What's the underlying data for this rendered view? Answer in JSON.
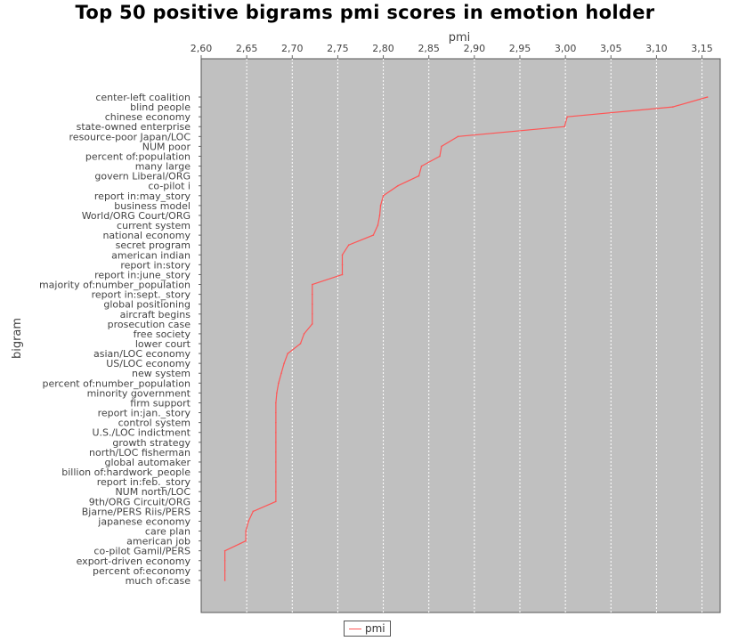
{
  "chart_data": {
    "type": "line",
    "orientation": "horizontal",
    "title": "Top 50 positive bigrams pmi scores in emotion holder",
    "xlabel": "pmi",
    "ylabel": "bigram",
    "xlim": [
      2.6,
      3.17
    ],
    "x_axis_position": "top",
    "x_ticks": [
      "2,60",
      "2,65",
      "2,70",
      "2,75",
      "2,80",
      "2,85",
      "2,90",
      "2,95",
      "3,00",
      "3,05",
      "3,10",
      "3,15"
    ],
    "grid": true,
    "legend_position": "bottom",
    "series": [
      {
        "name": "pmi",
        "color": "#ff5555",
        "categories": [
          "center-left coalition",
          "blind people",
          "chinese economy",
          "state-owned enterprise",
          "resource-poor Japan/LOC",
          "NUM poor",
          "percent of:population",
          "many large",
          "govern Liberal/ORG",
          "co-pilot i",
          "report in:may_story",
          "business model",
          "World/ORG Court/ORG",
          "current system",
          "national economy",
          "secret program",
          "american indian",
          "report in:story",
          "report in:june_story",
          "majority of:number_population",
          "report in:sept._story",
          "global positioning",
          "aircraft begins",
          "prosecution case",
          "free society",
          "lower court",
          "asian/LOC economy",
          "US/LOC economy",
          "new system",
          "percent of:number_population",
          "minority government",
          "firm support",
          "report in:jan._story",
          "control system",
          "U.S./LOC indictment",
          "growth strategy",
          "north/LOC fisherman",
          "global automaker",
          "billion of:hardwork_people",
          "report in:feb._story",
          "NUM north/LOC",
          "9th/ORG Circuit/ORG",
          "Bjarne/PERS Riis/PERS",
          "japanese economy",
          "care plan",
          "american job",
          "co-pilot Gamil/PERS",
          "export-driven economy",
          "percent of:economy",
          "much of:case"
        ],
        "values": [
          3.156,
          3.118,
          3.002,
          2.999,
          2.882,
          2.864,
          2.862,
          2.842,
          2.839,
          2.816,
          2.8,
          2.797,
          2.796,
          2.794,
          2.789,
          2.762,
          2.755,
          2.755,
          2.755,
          2.722,
          2.722,
          2.722,
          2.722,
          2.722,
          2.713,
          2.709,
          2.695,
          2.691,
          2.688,
          2.685,
          2.683,
          2.682,
          2.682,
          2.682,
          2.682,
          2.682,
          2.682,
          2.682,
          2.682,
          2.682,
          2.682,
          2.682,
          2.657,
          2.652,
          2.649,
          2.649,
          2.626,
          2.626,
          2.626,
          2.626
        ]
      }
    ]
  },
  "colors": {
    "plot_background": "#c0c0c0",
    "grid": "#ffffff",
    "line": "#ff5555"
  }
}
